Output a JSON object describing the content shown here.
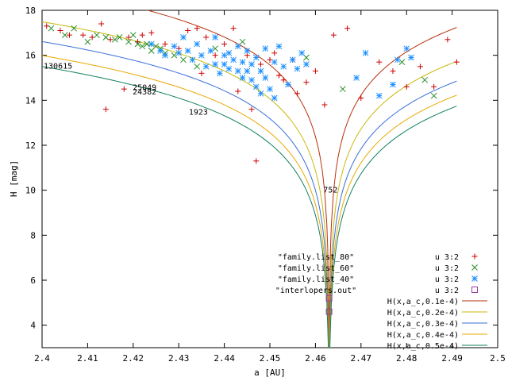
{
  "chart_data": {
    "type": "scatter",
    "title": "",
    "xlabel": "a [AU]",
    "ylabel": "H [mag]",
    "xlim": [
      2.4,
      2.5
    ],
    "ylim": [
      3,
      18
    ],
    "xticks": [
      "2.4",
      "2.41",
      "2.42",
      "2.43",
      "2.44",
      "2.45",
      "2.46",
      "2.47",
      "2.48",
      "2.49",
      "2.5"
    ],
    "yticks": [
      "4",
      "6",
      "8",
      "10",
      "12",
      "14",
      "16",
      "18"
    ],
    "series": [
      {
        "name": "u 3:2",
        "file_label": "\"family.list_80\"",
        "marker": "plus",
        "color": "#cc0000",
        "points": [
          [
            2.401,
            17.3
          ],
          [
            2.404,
            17.1
          ],
          [
            2.406,
            16.9
          ],
          [
            2.409,
            16.9
          ],
          [
            2.411,
            16.8
          ],
          [
            2.413,
            17.4
          ],
          [
            2.414,
            13.6
          ],
          [
            2.415,
            16.7
          ],
          [
            2.418,
            14.5
          ],
          [
            2.419,
            16.8
          ],
          [
            2.421,
            16.6
          ],
          [
            2.422,
            16.9
          ],
          [
            2.424,
            17.0
          ],
          [
            2.427,
            16.5
          ],
          [
            2.43,
            16.3
          ],
          [
            2.432,
            17.1
          ],
          [
            2.434,
            17.2
          ],
          [
            2.435,
            15.2
          ],
          [
            2.436,
            16.8
          ],
          [
            2.438,
            16.0
          ],
          [
            2.44,
            16.5
          ],
          [
            2.442,
            17.2
          ],
          [
            2.443,
            14.4
          ],
          [
            2.445,
            16.0
          ],
          [
            2.446,
            13.6
          ],
          [
            2.447,
            11.3
          ],
          [
            2.448,
            15.6
          ],
          [
            2.45,
            15.8
          ],
          [
            2.451,
            16.1
          ],
          [
            2.452,
            15.1
          ],
          [
            2.453,
            14.9
          ],
          [
            2.455,
            15.8
          ],
          [
            2.456,
            14.3
          ],
          [
            2.458,
            14.8
          ],
          [
            2.46,
            15.3
          ],
          [
            2.462,
            13.8
          ],
          [
            2.464,
            16.9
          ],
          [
            2.467,
            17.2
          ],
          [
            2.47,
            14.1
          ],
          [
            2.474,
            15.7
          ],
          [
            2.477,
            15.3
          ],
          [
            2.48,
            14.6
          ],
          [
            2.483,
            15.5
          ],
          [
            2.486,
            14.6
          ],
          [
            2.489,
            16.7
          ],
          [
            2.491,
            15.7
          ]
        ]
      },
      {
        "name": "u 3:2",
        "file_label": "\"family.list_60\"",
        "marker": "cross",
        "color": "#228b22",
        "points": [
          [
            2.402,
            17.2
          ],
          [
            2.405,
            16.9
          ],
          [
            2.407,
            17.2
          ],
          [
            2.41,
            16.6
          ],
          [
            2.412,
            16.9
          ],
          [
            2.414,
            16.8
          ],
          [
            2.416,
            16.7
          ],
          [
            2.417,
            16.8
          ],
          [
            2.419,
            16.6
          ],
          [
            2.42,
            16.9
          ],
          [
            2.421,
            16.5
          ],
          [
            2.422,
            16.4
          ],
          [
            2.423,
            16.5
          ],
          [
            2.424,
            16.2
          ],
          [
            2.425,
            16.4
          ],
          [
            2.426,
            16.3
          ],
          [
            2.427,
            16.1
          ],
          [
            2.429,
            16.0
          ],
          [
            2.431,
            15.8
          ],
          [
            2.434,
            15.5
          ],
          [
            2.438,
            16.3
          ],
          [
            2.444,
            16.6
          ],
          [
            2.458,
            15.9
          ],
          [
            2.466,
            14.5
          ],
          [
            2.479,
            15.7
          ],
          [
            2.484,
            14.9
          ],
          [
            2.486,
            14.2
          ]
        ]
      },
      {
        "name": "u 3:2",
        "file_label": "\"family.list_40\"",
        "marker": "star",
        "color": "#1e90ff",
        "points": [
          [
            2.424,
            16.5
          ],
          [
            2.426,
            16.2
          ],
          [
            2.427,
            16.0
          ],
          [
            2.429,
            16.4
          ],
          [
            2.43,
            16.1
          ],
          [
            2.431,
            16.8
          ],
          [
            2.432,
            16.2
          ],
          [
            2.433,
            15.8
          ],
          [
            2.434,
            16.5
          ],
          [
            2.435,
            16.0
          ],
          [
            2.436,
            15.5
          ],
          [
            2.437,
            16.2
          ],
          [
            2.438,
            15.6
          ],
          [
            2.438,
            16.8
          ],
          [
            2.439,
            15.2
          ],
          [
            2.44,
            16.0
          ],
          [
            2.44,
            15.6
          ],
          [
            2.441,
            15.4
          ],
          [
            2.441,
            16.1
          ],
          [
            2.442,
            15.8
          ],
          [
            2.443,
            15.3
          ],
          [
            2.443,
            16.4
          ],
          [
            2.444,
            15.0
          ],
          [
            2.444,
            15.7
          ],
          [
            2.445,
            16.2
          ],
          [
            2.445,
            15.3
          ],
          [
            2.446,
            14.9
          ],
          [
            2.446,
            15.6
          ],
          [
            2.447,
            14.6
          ],
          [
            2.447,
            15.9
          ],
          [
            2.448,
            15.3
          ],
          [
            2.448,
            14.3
          ],
          [
            2.449,
            16.3
          ],
          [
            2.449,
            15.0
          ],
          [
            2.45,
            14.5
          ],
          [
            2.451,
            15.7
          ],
          [
            2.451,
            14.1
          ],
          [
            2.452,
            16.4
          ],
          [
            2.453,
            15.5
          ],
          [
            2.454,
            14.7
          ],
          [
            2.455,
            15.8
          ],
          [
            2.456,
            15.4
          ],
          [
            2.457,
            16.1
          ],
          [
            2.458,
            15.6
          ],
          [
            2.469,
            15.0
          ],
          [
            2.471,
            16.1
          ],
          [
            2.474,
            14.2
          ],
          [
            2.477,
            14.7
          ],
          [
            2.478,
            15.8
          ],
          [
            2.48,
            16.3
          ],
          [
            2.481,
            15.9
          ]
        ]
      },
      {
        "name": "u 3:2",
        "file_label": "\"interlopers.out\"",
        "marker": "square",
        "color": "#9b3d9b",
        "points": [
          [
            2.463,
            5.2
          ],
          [
            2.463,
            4.6
          ]
        ]
      }
    ],
    "curves": [
      {
        "name": "H(x,a_c,0.1e-4)",
        "color": "#b8310d",
        "c": 1e-05
      },
      {
        "name": "H(x,a_c,0.2e-4)",
        "color": "#c8b80a",
        "c": 2e-05
      },
      {
        "name": "H(x,a_c,0.3e-4)",
        "color": "#3a6fd8",
        "c": 3e-05
      },
      {
        "name": "H(x,a_c,0.4e-4)",
        "color": "#e8a800",
        "c": 4e-05
      },
      {
        "name": "H(x,a_c,0.5e-4)",
        "color": "#128060",
        "c": 5e-05
      }
    ],
    "a_c": 2.463,
    "annotations": [
      {
        "text": "130615",
        "x": 2.4035,
        "y": 15.55
      },
      {
        "text": "25049",
        "x": 2.4225,
        "y": 14.6
      },
      {
        "text": "24382",
        "x": 2.4225,
        "y": 14.4
      },
      {
        "text": "1923",
        "x": 2.4343,
        "y": 13.5
      },
      {
        "text": "752",
        "x": 2.4633,
        "y": 10.05
      }
    ],
    "legend_position": "bottom-right",
    "grid": false
  }
}
